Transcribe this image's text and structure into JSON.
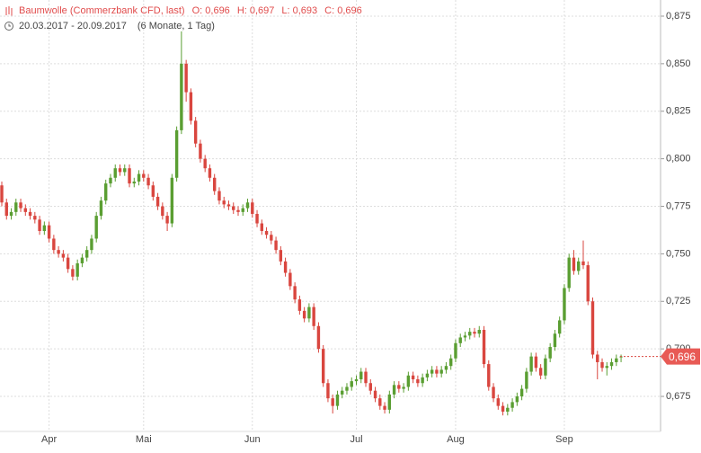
{
  "chart_data": {
    "type": "candlestick",
    "title": "Baumwolle (Commerzbank CFD, last)",
    "quote": [
      "O: 0,696",
      "H: 0,697",
      "L: 0,693",
      "C: 0,696"
    ],
    "range_text": "20.03.2017 - 20.09.2017",
    "period_text": "(6 Monate, 1 Tag)",
    "up_color": "#5a9e32",
    "down_color": "#d9463f",
    "grid": true,
    "ylim": [
      0.6476,
      0.8835
    ],
    "yticks": [
      {
        "value": 0.675,
        "label": "0,675"
      },
      {
        "value": 0.7,
        "label": "0,700"
      },
      {
        "value": 0.725,
        "label": "0,725"
      },
      {
        "value": 0.75,
        "label": "0,750"
      },
      {
        "value": 0.775,
        "label": "0,775"
      },
      {
        "value": 0.8,
        "label": "0,800"
      },
      {
        "value": 0.825,
        "label": "0,825"
      },
      {
        "value": 0.85,
        "label": "0,850"
      },
      {
        "value": 0.875,
        "label": "0,875"
      }
    ],
    "last_price": {
      "value": 0.696,
      "label": "0,696"
    },
    "categories": [
      null,
      null,
      null,
      null,
      null,
      null,
      null,
      null,
      null,
      null,
      "Apr",
      null,
      null,
      null,
      null,
      null,
      null,
      null,
      null,
      null,
      null,
      null,
      null,
      null,
      null,
      null,
      null,
      null,
      null,
      null,
      "Mai",
      null,
      null,
      null,
      null,
      null,
      null,
      null,
      null,
      null,
      null,
      null,
      null,
      null,
      null,
      null,
      null,
      null,
      null,
      null,
      null,
      null,
      null,
      "Jun",
      null,
      null,
      null,
      null,
      null,
      null,
      null,
      null,
      null,
      null,
      null,
      null,
      null,
      null,
      null,
      null,
      null,
      null,
      null,
      null,
      null,
      "Jul",
      null,
      null,
      null,
      null,
      null,
      null,
      null,
      null,
      null,
      null,
      null,
      null,
      null,
      null,
      null,
      null,
      null,
      null,
      null,
      null,
      "Aug",
      null,
      null,
      null,
      null,
      null,
      null,
      null,
      null,
      null,
      null,
      null,
      null,
      null,
      null,
      null,
      null,
      null,
      null,
      null,
      null,
      null,
      null,
      "Sep",
      null,
      null,
      null,
      null,
      null,
      null,
      null,
      null,
      null,
      null,
      null,
      null
    ],
    "open": [
      0.786,
      0.777,
      0.77,
      0.772,
      0.777,
      0.774,
      0.772,
      0.77,
      0.768,
      0.762,
      0.765,
      0.758,
      0.752,
      0.75,
      0.748,
      0.742,
      0.738,
      0.745,
      0.748,
      0.752,
      0.758,
      0.77,
      0.778,
      0.787,
      0.79,
      0.795,
      0.793,
      0.795,
      0.787,
      0.788,
      0.792,
      0.79,
      0.786,
      0.78,
      0.775,
      0.77,
      0.766,
      0.79,
      0.815,
      0.85,
      0.835,
      0.82,
      0.808,
      0.8,
      0.795,
      0.79,
      0.783,
      0.778,
      0.776,
      0.775,
      0.773,
      0.772,
      0.774,
      0.777,
      0.771,
      0.766,
      0.762,
      0.76,
      0.757,
      0.752,
      0.746,
      0.74,
      0.733,
      0.726,
      0.72,
      0.716,
      0.722,
      0.712,
      0.7,
      0.682,
      0.674,
      0.67,
      0.676,
      0.678,
      0.68,
      0.683,
      0.684,
      0.688,
      0.682,
      0.678,
      0.674,
      0.67,
      0.668,
      0.676,
      0.681,
      0.679,
      0.68,
      0.686,
      0.684,
      0.682,
      0.685,
      0.687,
      0.689,
      0.687,
      0.689,
      0.691,
      0.695,
      0.703,
      0.706,
      0.707,
      0.709,
      0.708,
      0.71,
      0.692,
      0.68,
      0.674,
      0.67,
      0.667,
      0.669,
      0.672,
      0.675,
      0.679,
      0.688,
      0.696,
      0.69,
      0.686,
      0.695,
      0.701,
      0.708,
      0.715,
      0.732,
      0.748,
      0.741,
      0.746,
      0.744,
      0.725,
      0.697,
      0.693,
      0.69,
      0.691,
      0.693,
      0.696
    ],
    "high": [
      0.788,
      0.779,
      0.774,
      0.779,
      0.779,
      0.776,
      0.774,
      0.772,
      0.77,
      0.767,
      0.767,
      0.76,
      0.754,
      0.752,
      0.75,
      0.744,
      0.747,
      0.75,
      0.754,
      0.76,
      0.772,
      0.78,
      0.789,
      0.792,
      0.797,
      0.797,
      0.797,
      0.797,
      0.79,
      0.794,
      0.794,
      0.792,
      0.788,
      0.782,
      0.777,
      0.772,
      0.792,
      0.817,
      0.867,
      0.852,
      0.837,
      0.822,
      0.81,
      0.802,
      0.797,
      0.792,
      0.785,
      0.78,
      0.778,
      0.777,
      0.775,
      0.776,
      0.779,
      0.779,
      0.773,
      0.768,
      0.764,
      0.762,
      0.759,
      0.754,
      0.748,
      0.742,
      0.735,
      0.728,
      0.722,
      0.724,
      0.724,
      0.714,
      0.702,
      0.684,
      0.676,
      0.678,
      0.68,
      0.682,
      0.685,
      0.686,
      0.69,
      0.69,
      0.684,
      0.68,
      0.676,
      0.672,
      0.678,
      0.683,
      0.683,
      0.682,
      0.688,
      0.688,
      0.686,
      0.687,
      0.689,
      0.691,
      0.691,
      0.691,
      0.693,
      0.697,
      0.705,
      0.708,
      0.709,
      0.711,
      0.711,
      0.712,
      0.712,
      0.694,
      0.682,
      0.676,
      0.672,
      0.671,
      0.674,
      0.677,
      0.681,
      0.69,
      0.698,
      0.698,
      0.692,
      0.697,
      0.703,
      0.71,
      0.717,
      0.734,
      0.75,
      0.752,
      0.748,
      0.757,
      0.746,
      0.727,
      0.699,
      0.695,
      0.693,
      0.695,
      0.697,
      0.697
    ],
    "low": [
      0.775,
      0.768,
      0.768,
      0.77,
      0.772,
      0.77,
      0.768,
      0.766,
      0.76,
      0.76,
      0.756,
      0.75,
      0.748,
      0.746,
      0.74,
      0.736,
      0.736,
      0.743,
      0.746,
      0.75,
      0.756,
      0.768,
      0.776,
      0.785,
      0.788,
      0.791,
      0.791,
      0.785,
      0.785,
      0.786,
      0.788,
      0.784,
      0.778,
      0.773,
      0.768,
      0.762,
      0.764,
      0.788,
      0.813,
      0.83,
      0.818,
      0.806,
      0.798,
      0.793,
      0.788,
      0.781,
      0.776,
      0.774,
      0.773,
      0.771,
      0.77,
      0.77,
      0.772,
      0.769,
      0.764,
      0.76,
      0.758,
      0.755,
      0.75,
      0.744,
      0.738,
      0.731,
      0.724,
      0.718,
      0.714,
      0.714,
      0.71,
      0.698,
      0.68,
      0.672,
      0.666,
      0.668,
      0.674,
      0.676,
      0.678,
      0.681,
      0.682,
      0.68,
      0.676,
      0.672,
      0.668,
      0.666,
      0.666,
      0.674,
      0.677,
      0.677,
      0.678,
      0.682,
      0.68,
      0.68,
      0.683,
      0.685,
      0.685,
      0.685,
      0.687,
      0.689,
      0.693,
      0.701,
      0.704,
      0.705,
      0.706,
      0.706,
      0.69,
      0.678,
      0.672,
      0.668,
      0.665,
      0.665,
      0.667,
      0.67,
      0.673,
      0.677,
      0.686,
      0.688,
      0.684,
      0.684,
      0.693,
      0.699,
      0.706,
      0.713,
      0.73,
      0.739,
      0.739,
      0.742,
      0.723,
      0.695,
      0.684,
      0.688,
      0.686,
      0.689,
      0.691,
      0.693
    ],
    "close": [
      0.777,
      0.77,
      0.772,
      0.777,
      0.774,
      0.772,
      0.77,
      0.768,
      0.762,
      0.765,
      0.758,
      0.752,
      0.75,
      0.748,
      0.742,
      0.738,
      0.745,
      0.748,
      0.752,
      0.758,
      0.77,
      0.778,
      0.787,
      0.79,
      0.795,
      0.793,
      0.795,
      0.787,
      0.788,
      0.792,
      0.79,
      0.786,
      0.78,
      0.775,
      0.77,
      0.766,
      0.79,
      0.815,
      0.85,
      0.835,
      0.82,
      0.808,
      0.8,
      0.795,
      0.79,
      0.783,
      0.778,
      0.776,
      0.775,
      0.773,
      0.772,
      0.774,
      0.777,
      0.771,
      0.766,
      0.762,
      0.76,
      0.757,
      0.752,
      0.746,
      0.74,
      0.733,
      0.726,
      0.72,
      0.716,
      0.722,
      0.712,
      0.7,
      0.682,
      0.674,
      0.67,
      0.676,
      0.678,
      0.68,
      0.683,
      0.684,
      0.688,
      0.682,
      0.678,
      0.674,
      0.67,
      0.668,
      0.676,
      0.681,
      0.679,
      0.68,
      0.686,
      0.684,
      0.682,
      0.685,
      0.687,
      0.689,
      0.687,
      0.689,
      0.691,
      0.695,
      0.703,
      0.706,
      0.707,
      0.709,
      0.708,
      0.71,
      0.692,
      0.68,
      0.674,
      0.67,
      0.667,
      0.669,
      0.672,
      0.675,
      0.679,
      0.688,
      0.696,
      0.69,
      0.686,
      0.695,
      0.701,
      0.708,
      0.715,
      0.732,
      0.748,
      0.741,
      0.746,
      0.744,
      0.725,
      0.697,
      0.693,
      0.69,
      0.691,
      0.693,
      0.695,
      0.696
    ]
  }
}
